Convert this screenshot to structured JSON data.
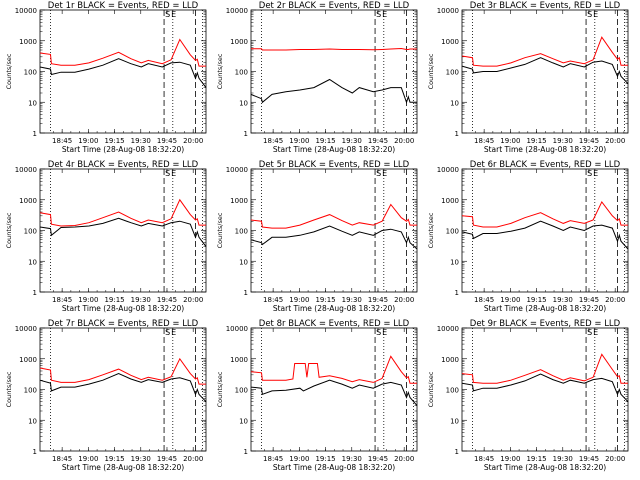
{
  "figure": {
    "x_tick_labels": [
      "18:45",
      "19:00",
      "19:15",
      "19:30",
      "19:45",
      "20:00"
    ],
    "y_tick_labels": [
      "1",
      "10",
      "100",
      "1000",
      "10000"
    ],
    "xlabel": "Start Time (28-Aug-08 18:32:20)",
    "ylabel": "Counts/sec",
    "marker_labels": [
      "S",
      "E"
    ]
  },
  "chart_data": [
    {
      "type": "line",
      "title": "Det 1r BLACK = Events, RED = LLD",
      "y_scale": "log",
      "ylim": [
        1,
        10000
      ],
      "xlim_minutes": [
        0,
        95
      ],
      "grid": false,
      "series": [
        {
          "color": "#000000",
          "role": "events",
          "x_min": [
            0,
            6,
            6.5,
            12,
            20,
            28,
            36,
            45,
            52,
            58,
            62,
            70,
            75,
            80,
            86,
            89,
            90,
            91,
            95
          ],
          "values": [
            140,
            120,
            80,
            95,
            95,
            120,
            160,
            260,
            180,
            140,
            180,
            140,
            190,
            200,
            160,
            60,
            90,
            60,
            30
          ]
        },
        {
          "color": "#ff0000",
          "role": "lld",
          "x_min": [
            0,
            6,
            6.5,
            12,
            20,
            28,
            36,
            45,
            52,
            58,
            62,
            70,
            75,
            80,
            86,
            89,
            90,
            91,
            95
          ],
          "values": [
            400,
            360,
            180,
            160,
            160,
            190,
            270,
            420,
            260,
            190,
            230,
            180,
            240,
            1100,
            350,
            230,
            250,
            150,
            150
          ]
        }
      ],
      "dashed_markers_min": [
        71,
        89
      ],
      "dotted_markers_min": [
        6,
        76,
        93
      ]
    },
    {
      "type": "line",
      "title": "Det 2r BLACK = Events, RED = LLD",
      "y_scale": "log",
      "ylim": [
        1,
        10000
      ],
      "xlim_minutes": [
        0,
        95
      ],
      "grid": false,
      "series": [
        {
          "color": "#000000",
          "role": "events",
          "x_min": [
            0,
            6,
            6.5,
            12,
            20,
            28,
            36,
            45,
            52,
            58,
            62,
            70,
            75,
            80,
            86,
            89,
            90,
            91,
            95
          ],
          "values": [
            18,
            13,
            10,
            18,
            22,
            25,
            30,
            55,
            30,
            20,
            30,
            22,
            25,
            30,
            30,
            10,
            15,
            10,
            10
          ]
        },
        {
          "color": "#ff0000",
          "role": "lld",
          "x_min": [
            0,
            6,
            6.5,
            12,
            20,
            28,
            36,
            45,
            52,
            58,
            62,
            70,
            75,
            80,
            86,
            89,
            90,
            91,
            95
          ],
          "values": [
            550,
            550,
            500,
            500,
            500,
            520,
            520,
            540,
            520,
            520,
            520,
            510,
            520,
            540,
            560,
            520,
            520,
            540,
            540
          ]
        }
      ],
      "dashed_markers_min": [
        71,
        89
      ],
      "dotted_markers_min": [
        6,
        76,
        93
      ]
    },
    {
      "type": "line",
      "title": "Det 3r BLACK = Events, RED = LLD",
      "y_scale": "log",
      "ylim": [
        1,
        10000
      ],
      "xlim_minutes": [
        0,
        95
      ],
      "grid": false,
      "series": [
        {
          "color": "#000000",
          "role": "events",
          "x_min": [
            0,
            6,
            6.5,
            12,
            20,
            28,
            36,
            45,
            52,
            58,
            62,
            70,
            75,
            80,
            86,
            89,
            90,
            91,
            95
          ],
          "values": [
            150,
            120,
            90,
            100,
            100,
            130,
            170,
            280,
            190,
            140,
            180,
            140,
            200,
            220,
            170,
            70,
            100,
            70,
            40
          ]
        },
        {
          "color": "#ff0000",
          "role": "lld",
          "x_min": [
            0,
            6,
            6.5,
            12,
            20,
            28,
            36,
            45,
            52,
            58,
            62,
            70,
            75,
            80,
            86,
            89,
            90,
            91,
            95
          ],
          "values": [
            320,
            280,
            160,
            150,
            150,
            190,
            280,
            380,
            260,
            190,
            220,
            180,
            240,
            1300,
            420,
            250,
            280,
            160,
            160
          ]
        }
      ],
      "dashed_markers_min": [
        71,
        89
      ],
      "dotted_markers_min": [
        6,
        76,
        93
      ]
    },
    {
      "type": "line",
      "title": "Det 4r BLACK = Events, RED = LLD",
      "y_scale": "log",
      "ylim": [
        1,
        10000
      ],
      "xlim_minutes": [
        0,
        95
      ],
      "grid": false,
      "series": [
        {
          "color": "#000000",
          "role": "events",
          "x_min": [
            0,
            6,
            6.5,
            12,
            20,
            28,
            36,
            45,
            52,
            58,
            62,
            70,
            75,
            80,
            86,
            89,
            90,
            91,
            95
          ],
          "values": [
            130,
            115,
            70,
            125,
            130,
            140,
            170,
            250,
            180,
            140,
            170,
            140,
            180,
            200,
            160,
            60,
            90,
            60,
            30
          ]
        },
        {
          "color": "#ff0000",
          "role": "lld",
          "x_min": [
            0,
            6,
            6.5,
            12,
            20,
            28,
            36,
            45,
            52,
            58,
            62,
            70,
            75,
            80,
            86,
            89,
            90,
            91,
            95
          ],
          "values": [
            380,
            330,
            160,
            140,
            145,
            180,
            260,
            400,
            250,
            180,
            220,
            180,
            240,
            1000,
            330,
            220,
            240,
            150,
            150
          ]
        }
      ],
      "dashed_markers_min": [
        71,
        89
      ],
      "dotted_markers_min": [
        6,
        76,
        93
      ]
    },
    {
      "type": "line",
      "title": "Det 5r BLACK = Events, RED = LLD",
      "y_scale": "log",
      "ylim": [
        1,
        10000
      ],
      "xlim_minutes": [
        0,
        95
      ],
      "grid": false,
      "series": [
        {
          "color": "#000000",
          "role": "events",
          "x_min": [
            0,
            6,
            6.5,
            12,
            20,
            28,
            36,
            45,
            52,
            58,
            62,
            70,
            75,
            80,
            86,
            89,
            90,
            91,
            95
          ],
          "values": [
            50,
            40,
            35,
            60,
            60,
            70,
            90,
            140,
            95,
            70,
            90,
            70,
            100,
            110,
            90,
            40,
            60,
            40,
            25
          ]
        },
        {
          "color": "#ff0000",
          "role": "lld",
          "x_min": [
            0,
            6,
            6.5,
            12,
            20,
            28,
            36,
            45,
            52,
            58,
            62,
            70,
            75,
            80,
            86,
            89,
            90,
            91,
            95
          ],
          "values": [
            220,
            200,
            130,
            120,
            120,
            150,
            220,
            330,
            210,
            150,
            180,
            150,
            200,
            700,
            260,
            200,
            230,
            150,
            150
          ]
        }
      ],
      "dashed_markers_min": [
        71,
        89
      ],
      "dotted_markers_min": [
        6,
        76,
        93
      ]
    },
    {
      "type": "line",
      "title": "Det 6r BLACK = Events, RED = LLD",
      "y_scale": "log",
      "ylim": [
        1,
        10000
      ],
      "xlim_minutes": [
        0,
        95
      ],
      "grid": false,
      "series": [
        {
          "color": "#000000",
          "role": "events",
          "x_min": [
            0,
            6,
            6.5,
            12,
            20,
            28,
            36,
            45,
            52,
            58,
            62,
            70,
            75,
            80,
            86,
            89,
            90,
            91,
            95
          ],
          "values": [
            90,
            75,
            55,
            80,
            80,
            95,
            120,
            200,
            140,
            100,
            130,
            100,
            140,
            150,
            120,
            45,
            70,
            45,
            25
          ]
        },
        {
          "color": "#ff0000",
          "role": "lld",
          "x_min": [
            0,
            6,
            6.5,
            12,
            20,
            28,
            36,
            45,
            52,
            58,
            62,
            70,
            75,
            80,
            86,
            89,
            90,
            91,
            95
          ],
          "values": [
            300,
            280,
            150,
            130,
            130,
            170,
            260,
            380,
            240,
            170,
            210,
            170,
            220,
            850,
            300,
            210,
            240,
            150,
            150
          ]
        }
      ],
      "dashed_markers_min": [
        71,
        89
      ],
      "dotted_markers_min": [
        6,
        76,
        93
      ]
    },
    {
      "type": "line",
      "title": "Det 7r BLACK = Events, RED = LLD",
      "y_scale": "log",
      "ylim": [
        1,
        10000
      ],
      "xlim_minutes": [
        0,
        95
      ],
      "grid": false,
      "series": [
        {
          "color": "#000000",
          "role": "events",
          "x_min": [
            0,
            6,
            6.5,
            12,
            20,
            28,
            36,
            45,
            52,
            58,
            62,
            70,
            75,
            80,
            86,
            89,
            90,
            91,
            95
          ],
          "values": [
            200,
            160,
            90,
            120,
            120,
            150,
            200,
            330,
            220,
            170,
            210,
            170,
            220,
            240,
            190,
            70,
            100,
            70,
            40
          ]
        },
        {
          "color": "#ff0000",
          "role": "lld",
          "x_min": [
            0,
            6,
            6.5,
            12,
            20,
            28,
            36,
            45,
            52,
            58,
            62,
            70,
            75,
            80,
            86,
            89,
            90,
            91,
            95
          ],
          "values": [
            500,
            430,
            200,
            170,
            170,
            210,
            300,
            460,
            290,
            210,
            250,
            200,
            260,
            1000,
            330,
            220,
            240,
            150,
            150
          ]
        }
      ],
      "dashed_markers_min": [
        71,
        89
      ],
      "dotted_markers_min": [
        6,
        76,
        93
      ]
    },
    {
      "type": "line",
      "title": "Det 8r BLACK = Events, RED = LLD",
      "y_scale": "log",
      "ylim": [
        1,
        10000
      ],
      "xlim_minutes": [
        0,
        95
      ],
      "grid": false,
      "series": [
        {
          "color": "#000000",
          "role": "events",
          "x_min": [
            0,
            6,
            6.5,
            12,
            20,
            28,
            30,
            36,
            45,
            52,
            58,
            62,
            70,
            75,
            80,
            86,
            89,
            90,
            91,
            95
          ],
          "values": [
            120,
            110,
            70,
            90,
            95,
            110,
            90,
            130,
            200,
            150,
            110,
            140,
            110,
            150,
            170,
            140,
            55,
            80,
            55,
            30
          ]
        },
        {
          "color": "#ff0000",
          "role": "lld",
          "x_min": [
            0,
            6,
            6.5,
            12,
            20,
            24,
            25,
            31,
            32,
            33,
            38,
            39,
            45,
            52,
            58,
            62,
            70,
            75,
            80,
            86,
            89,
            90,
            91,
            95
          ],
          "values": [
            380,
            350,
            200,
            200,
            200,
            220,
            700,
            700,
            250,
            700,
            700,
            250,
            280,
            230,
            180,
            210,
            170,
            230,
            1200,
            380,
            240,
            260,
            160,
            160
          ]
        }
      ],
      "dashed_markers_min": [
        71,
        89
      ],
      "dotted_markers_min": [
        6,
        76,
        93
      ]
    },
    {
      "type": "line",
      "title": "Det 9r BLACK = Events, RED = LLD",
      "y_scale": "log",
      "ylim": [
        1,
        10000
      ],
      "xlim_minutes": [
        0,
        95
      ],
      "grid": false,
      "series": [
        {
          "color": "#000000",
          "role": "events",
          "x_min": [
            0,
            6,
            6.5,
            12,
            20,
            28,
            36,
            45,
            52,
            58,
            62,
            70,
            75,
            80,
            86,
            89,
            90,
            91,
            95
          ],
          "values": [
            160,
            140,
            90,
            110,
            110,
            140,
            190,
            320,
            210,
            160,
            200,
            160,
            210,
            230,
            180,
            70,
            100,
            70,
            40
          ]
        },
        {
          "color": "#ff0000",
          "role": "lld",
          "x_min": [
            0,
            6,
            6.5,
            12,
            20,
            28,
            36,
            45,
            52,
            58,
            62,
            70,
            75,
            80,
            86,
            89,
            90,
            91,
            95
          ],
          "values": [
            330,
            300,
            170,
            160,
            160,
            200,
            290,
            440,
            280,
            200,
            240,
            190,
            250,
            1400,
            450,
            260,
            280,
            160,
            160
          ]
        }
      ],
      "dashed_markers_min": [
        71,
        89
      ],
      "dotted_markers_min": [
        6,
        76,
        93
      ]
    }
  ]
}
